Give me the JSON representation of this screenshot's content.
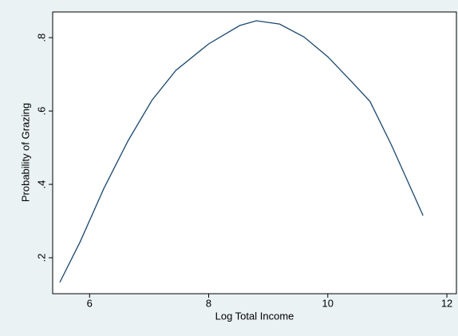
{
  "chart_data": {
    "type": "line",
    "x_label": "Log Total Income",
    "y_label": "Probability of Grazing",
    "x": [
      5.5,
      5.84,
      6.24,
      6.65,
      7.05,
      7.45,
      8.0,
      8.52,
      8.8,
      9.19,
      9.6,
      10.0,
      10.4,
      10.71,
      11.07,
      11.6
    ],
    "series": [
      {
        "color": "#1a476f",
        "values": [
          0.133,
          0.243,
          0.389,
          0.52,
          0.63,
          0.711,
          0.783,
          0.833,
          0.846,
          0.837,
          0.802,
          0.748,
          0.68,
          0.626,
          0.507,
          0.315
        ]
      }
    ],
    "xlim": [
      5.38,
      12.16
    ],
    "ylim": [
      0.102,
      0.87
    ],
    "xticks": [
      6,
      8,
      10,
      12
    ],
    "yticks": [
      {
        "value": 0.2,
        "label": ".2"
      },
      {
        "value": 0.4,
        "label": ".4"
      },
      {
        "value": 0.6,
        "label": ".6"
      },
      {
        "value": 0.8,
        "label": ".8"
      }
    ],
    "grid": false
  }
}
